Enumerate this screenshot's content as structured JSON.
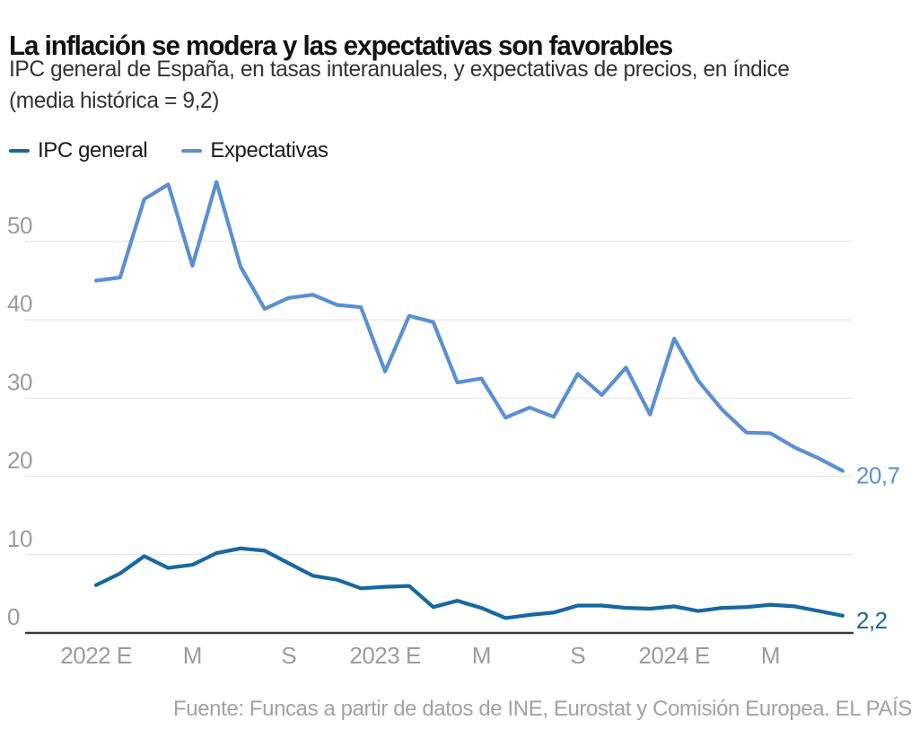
{
  "header": {
    "title": "La inflación se modera y las expectativas son favorables",
    "subtitle_line1": "IPC general de España, en tasas interanuales, y expectativas de precios, en índice",
    "subtitle_line2": "(media histórica = 9,2)"
  },
  "chart_data": {
    "type": "line",
    "title": "La inflación se modera y las expectativas son favorables",
    "xlabel": "",
    "ylabel": "",
    "ylim": [
      0,
      58
    ],
    "grid": true,
    "legend_position": "top-left",
    "x": [
      "2022-01",
      "2022-02",
      "2022-03",
      "2022-04",
      "2022-05",
      "2022-06",
      "2022-07",
      "2022-08",
      "2022-09",
      "2022-10",
      "2022-11",
      "2022-12",
      "2023-01",
      "2023-02",
      "2023-03",
      "2023-04",
      "2023-05",
      "2023-06",
      "2023-07",
      "2023-08",
      "2023-09",
      "2023-10",
      "2023-11",
      "2023-12",
      "2024-01",
      "2024-02",
      "2024-03",
      "2024-04",
      "2024-05",
      "2024-06",
      "2024-07",
      "2024-08"
    ],
    "x_ticks": [
      {
        "index": 0,
        "label": "2022 E"
      },
      {
        "index": 4,
        "label": "M"
      },
      {
        "index": 8,
        "label": "S"
      },
      {
        "index": 12,
        "label": "2023 E"
      },
      {
        "index": 16,
        "label": "M"
      },
      {
        "index": 20,
        "label": "S"
      },
      {
        "index": 24,
        "label": "2024 E"
      },
      {
        "index": 28,
        "label": "M"
      }
    ],
    "y_ticks": [
      0,
      10,
      20,
      30,
      40,
      50
    ],
    "series": [
      {
        "name": "IPC general",
        "color": "#16689f",
        "end_label": "2,2",
        "values": [
          6.1,
          7.6,
          9.8,
          8.3,
          8.7,
          10.2,
          10.8,
          10.5,
          8.9,
          7.3,
          6.8,
          5.7,
          5.9,
          6.0,
          3.3,
          4.1,
          3.2,
          1.9,
          2.3,
          2.6,
          3.5,
          3.5,
          3.2,
          3.1,
          3.4,
          2.8,
          3.2,
          3.3,
          3.6,
          3.4,
          2.8,
          2.2
        ]
      },
      {
        "name": "Expectativas",
        "color": "#5b8fd4",
        "end_label": "20,7",
        "values": [
          45.0,
          45.4,
          55.4,
          57.3,
          46.9,
          57.6,
          46.8,
          41.4,
          42.8,
          43.2,
          41.9,
          41.6,
          33.4,
          40.5,
          39.7,
          32.0,
          32.5,
          27.5,
          28.8,
          27.6,
          33.1,
          30.4,
          33.9,
          27.9,
          37.6,
          32.2,
          28.5,
          25.6,
          25.5,
          23.7,
          22.3,
          20.7
        ]
      }
    ],
    "colors": {
      "grid": "#e2e2e2",
      "axis": "#3a3a3a",
      "tick_text": "#9b9b9b"
    },
    "source": "Fuente: Funcas a partir de datos de INE, Eurostat y Comisión Europea. EL PAÍS"
  }
}
